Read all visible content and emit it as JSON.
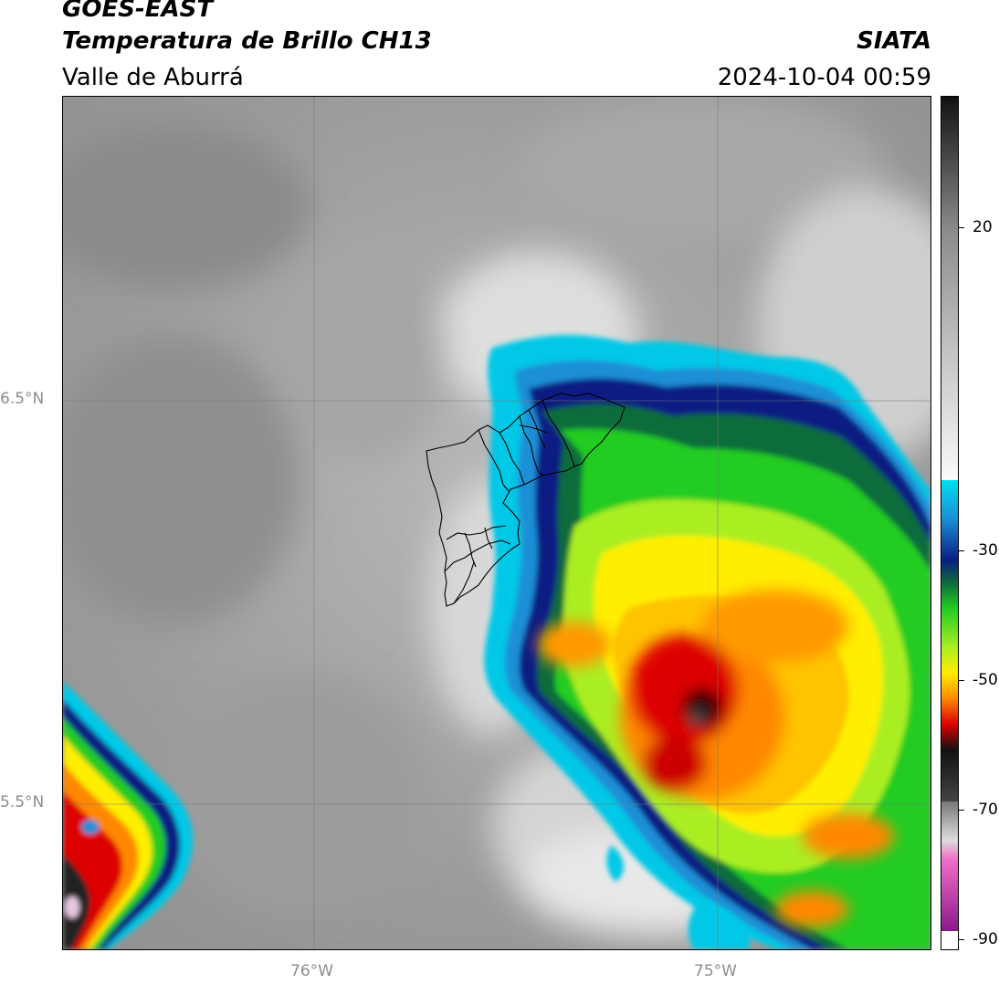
{
  "header": {
    "satellite": "GOES-EAST",
    "product": "Temperatura de Brillo CH13",
    "region": "Valle de Aburrá",
    "agency": "SIATA",
    "datetime": "2024-10-04 00:59"
  },
  "map": {
    "lat_labels": [
      "6.5°N",
      "5.5°N"
    ],
    "lon_labels": [
      "76°W",
      "75°W"
    ],
    "gridlines": true
  },
  "colorbar": {
    "tick_labels": [
      "20",
      "-30",
      "-50",
      "-70",
      "-90"
    ],
    "colors": {
      "warm_gray": "#8c8c8c",
      "cyan": "#00c8e6",
      "dark_blue": "#0a1e82",
      "green": "#22cc22",
      "yellow": "#ffee00",
      "orange": "#ff8800",
      "red": "#dd0000",
      "black": "#111111",
      "pink": "#f06ec8",
      "purple": "#8a1a8a"
    }
  }
}
